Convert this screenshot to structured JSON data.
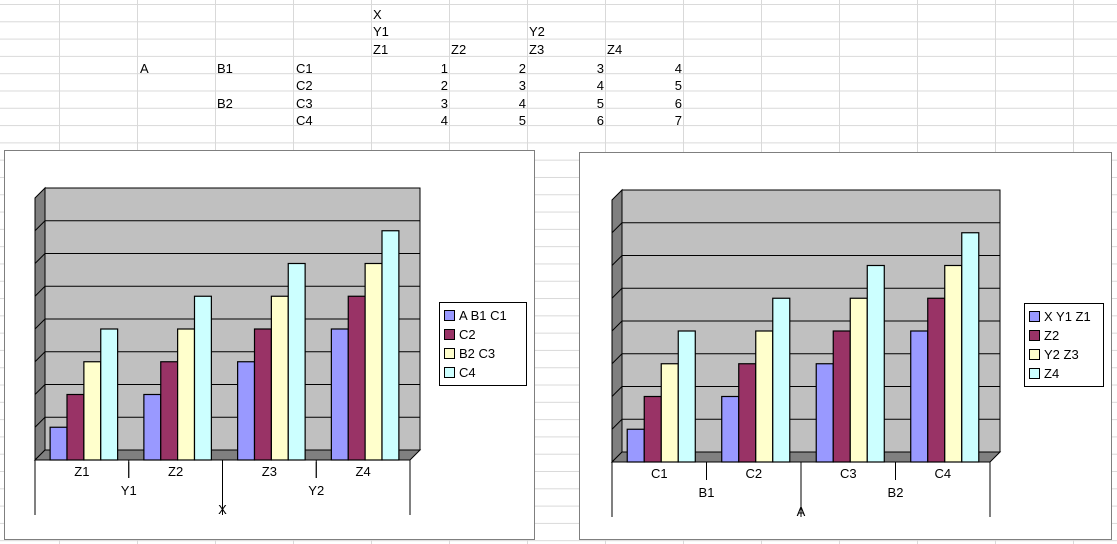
{
  "sheet": {
    "header": {
      "x": "X",
      "y1": "Y1",
      "y2": "Y2",
      "z1": "Z1",
      "z2": "Z2",
      "z3": "Z3",
      "z4": "Z4"
    },
    "row_labels": {
      "a": "A",
      "b1": "B1",
      "b2": "B2",
      "c1": "C1",
      "c2": "C2",
      "c3": "C3",
      "c4": "C4"
    },
    "values": [
      [
        1,
        2,
        3,
        4
      ],
      [
        2,
        3,
        4,
        5
      ],
      [
        3,
        4,
        5,
        6
      ],
      [
        4,
        5,
        6,
        7
      ]
    ]
  },
  "colors": {
    "series": [
      "#9999ff",
      "#993366",
      "#ffffcc",
      "#ccffff"
    ],
    "plot_bg": "#c0c0c0"
  },
  "chart_data": [
    {
      "type": "bar",
      "categories": [
        "Z1",
        "Z2",
        "Z3",
        "Z4"
      ],
      "group_labels": [
        "Y1",
        "Y2"
      ],
      "outer_label": "X",
      "series": [
        {
          "name": "A B1 C1",
          "values": [
            1,
            2,
            3,
            4
          ]
        },
        {
          "name": "C2",
          "values": [
            2,
            3,
            4,
            5
          ]
        },
        {
          "name": "B2 C3",
          "values": [
            3,
            4,
            5,
            6
          ]
        },
        {
          "name": "C4",
          "values": [
            4,
            5,
            6,
            7
          ]
        }
      ],
      "ylim": [
        0,
        8
      ],
      "grid": true,
      "legend": "right"
    },
    {
      "type": "bar",
      "categories": [
        "C1",
        "C2",
        "C3",
        "C4"
      ],
      "group_labels": [
        "B1",
        "B2"
      ],
      "outer_label": "A",
      "series": [
        {
          "name": "X Y1 Z1",
          "values": [
            1,
            2,
            3,
            4
          ]
        },
        {
          "name": "Z2",
          "values": [
            2,
            3,
            4,
            5
          ]
        },
        {
          "name": "Y2 Z3",
          "values": [
            3,
            4,
            5,
            6
          ]
        },
        {
          "name": "Z4",
          "values": [
            4,
            5,
            6,
            7
          ]
        }
      ],
      "ylim": [
        0,
        8
      ],
      "grid": true,
      "legend": "right"
    }
  ]
}
